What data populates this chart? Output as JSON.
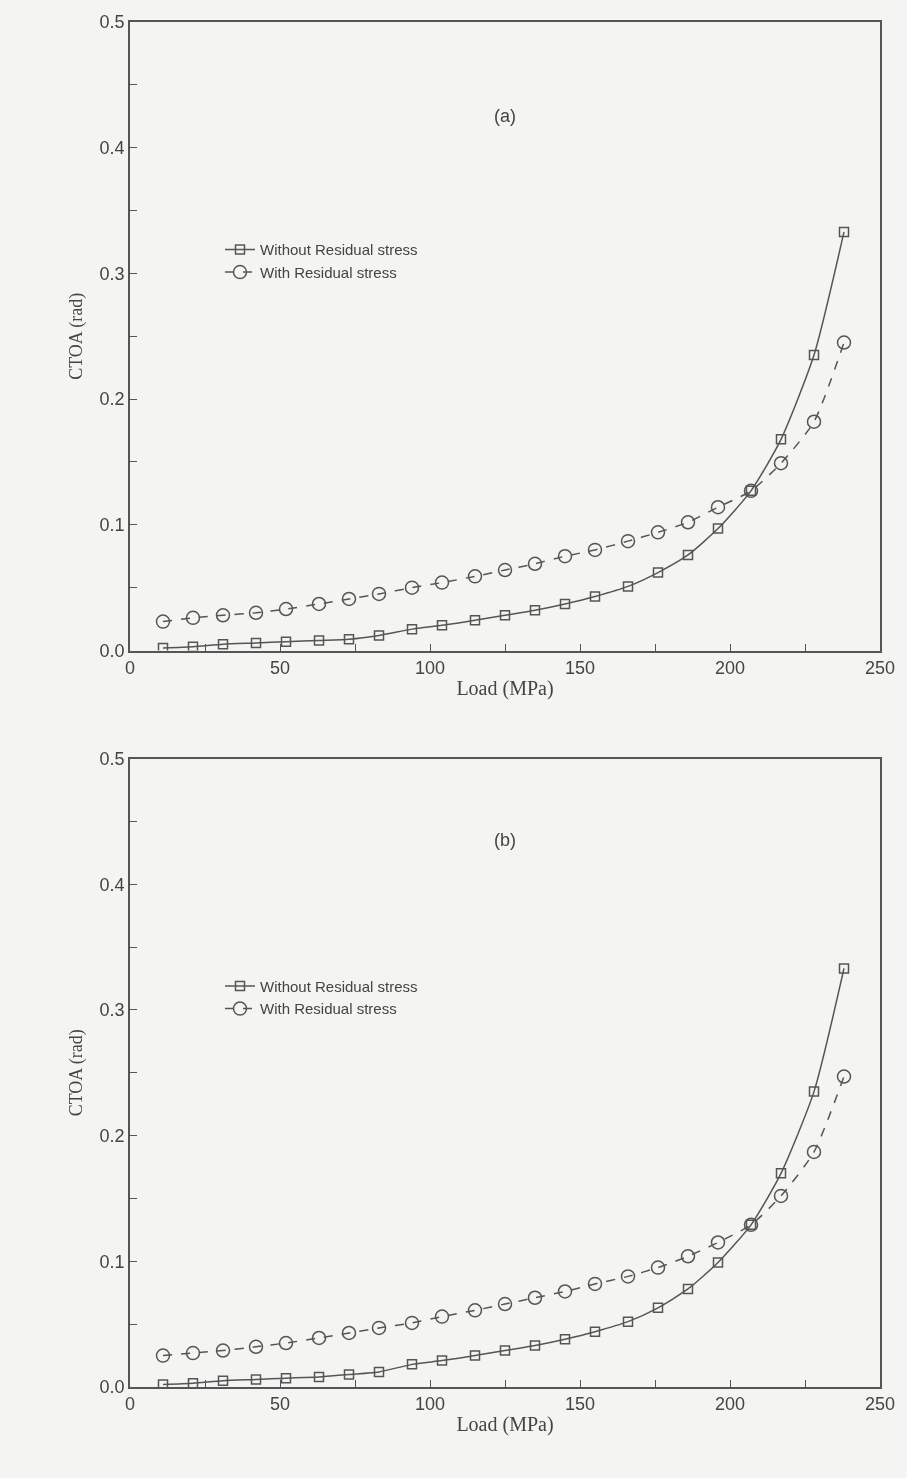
{
  "chart_data": [
    {
      "type": "line",
      "annotations": [
        "(a)"
      ],
      "xlabel": "Load (MPa)",
      "ylabel": "CTOA (rad)",
      "x": [
        11,
        21,
        31,
        42,
        52,
        63,
        73,
        83,
        94,
        104,
        115,
        125,
        135,
        145,
        155,
        166,
        176,
        186,
        196,
        207,
        217,
        228,
        238
      ],
      "series": [
        {
          "name": "Without Residual stress",
          "color": "#555555",
          "marker": "square",
          "line_style": "solid",
          "values": [
            0.002,
            0.003,
            0.005,
            0.006,
            0.007,
            0.008,
            0.009,
            0.012,
            0.017,
            0.02,
            0.024,
            0.028,
            0.032,
            0.037,
            0.043,
            0.051,
            0.062,
            0.076,
            0.097,
            0.127,
            0.168,
            0.235,
            0.333
          ]
        },
        {
          "name": "With Residual stress",
          "color": "#555555",
          "marker": "circle",
          "line_style": "dashed",
          "values": [
            0.023,
            0.026,
            0.028,
            0.03,
            0.033,
            0.037,
            0.041,
            0.045,
            0.05,
            0.054,
            0.059,
            0.064,
            0.069,
            0.075,
            0.08,
            0.087,
            0.094,
            0.102,
            0.114,
            0.127,
            0.149,
            0.182,
            0.245
          ]
        }
      ],
      "xlim": [
        0,
        250
      ],
      "ylim": [
        0,
        0.5
      ],
      "xticks": [
        0,
        {
          "value": 25,
          "label": null
        },
        50,
        {
          "value": 75,
          "label": null
        },
        100,
        {
          "value": 125,
          "label": null
        },
        150,
        {
          "value": 175,
          "label": null
        },
        200,
        {
          "value": 225,
          "label": null
        },
        250
      ],
      "yticks": [
        {
          "value": 0,
          "label": "0.0"
        },
        {
          "value": 0.05,
          "label": null
        },
        {
          "value": 0.1,
          "label": "0.1"
        },
        {
          "value": 0.15,
          "label": null
        },
        {
          "value": 0.2,
          "label": "0.2"
        },
        {
          "value": 0.25,
          "label": null
        },
        {
          "value": 0.3,
          "label": "0.3"
        },
        {
          "value": 0.35,
          "label": null
        },
        {
          "value": 0.4,
          "label": "0.4"
        },
        {
          "value": 0.45,
          "label": null
        },
        {
          "value": 0.5,
          "label": "0.5"
        }
      ],
      "grid": false,
      "legend": "left"
    },
    {
      "type": "line",
      "annotations": [
        "(b)"
      ],
      "xlabel": "Load (MPa)",
      "ylabel": "CTOA (rad)",
      "x": [
        11,
        21,
        31,
        42,
        52,
        63,
        73,
        83,
        94,
        104,
        115,
        125,
        135,
        145,
        155,
        166,
        176,
        186,
        196,
        207,
        217,
        228,
        238
      ],
      "series": [
        {
          "name": "Without Residual stress",
          "color": "#555555",
          "marker": "square",
          "line_style": "solid",
          "values": [
            0.002,
            0.003,
            0.005,
            0.006,
            0.007,
            0.008,
            0.01,
            0.012,
            0.018,
            0.021,
            0.025,
            0.029,
            0.033,
            0.038,
            0.044,
            0.052,
            0.063,
            0.078,
            0.099,
            0.129,
            0.17,
            0.235,
            0.333
          ]
        },
        {
          "name": "With Residual stress",
          "color": "#555555",
          "marker": "circle",
          "line_style": "dashed",
          "values": [
            0.025,
            0.027,
            0.029,
            0.032,
            0.035,
            0.039,
            0.043,
            0.047,
            0.051,
            0.056,
            0.061,
            0.066,
            0.071,
            0.076,
            0.082,
            0.088,
            0.095,
            0.104,
            0.115,
            0.129,
            0.152,
            0.187,
            0.247
          ]
        }
      ],
      "xlim": [
        0,
        250
      ],
      "ylim": [
        0,
        0.5
      ],
      "xticks": [
        0,
        {
          "value": 25,
          "label": null
        },
        50,
        {
          "value": 75,
          "label": null
        },
        100,
        {
          "value": 125,
          "label": null
        },
        150,
        {
          "value": 175,
          "label": null
        },
        200,
        {
          "value": 225,
          "label": null
        },
        250
      ],
      "yticks": [
        {
          "value": 0,
          "label": "0.0"
        },
        {
          "value": 0.05,
          "label": null
        },
        {
          "value": 0.1,
          "label": "0.1"
        },
        {
          "value": 0.15,
          "label": null
        },
        {
          "value": 0.2,
          "label": "0.2"
        },
        {
          "value": 0.25,
          "label": null
        },
        {
          "value": 0.3,
          "label": "0.3"
        },
        {
          "value": 0.35,
          "label": null
        },
        {
          "value": 0.4,
          "label": "0.4"
        },
        {
          "value": 0.45,
          "label": null
        },
        {
          "value": 0.5,
          "label": "0.5"
        }
      ],
      "grid": false,
      "legend": "left"
    }
  ]
}
